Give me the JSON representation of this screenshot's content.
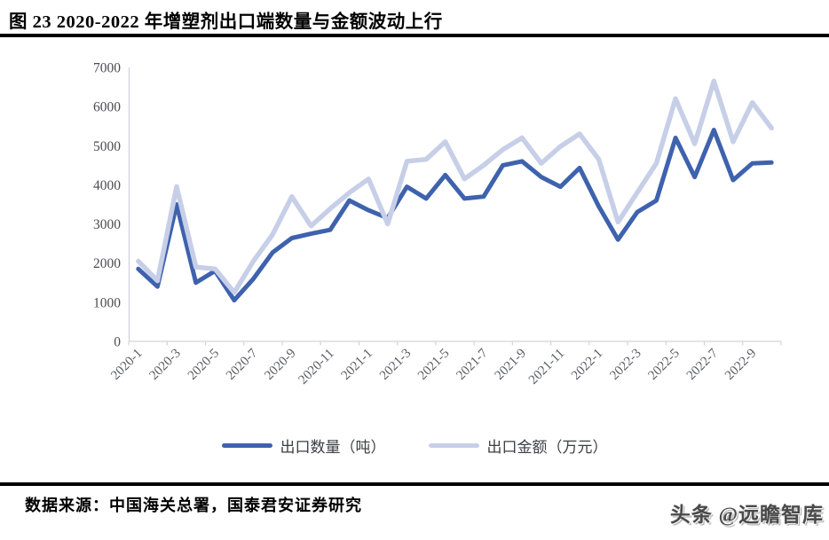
{
  "title": "图 23 2020-2022 年增塑剂出口端数量与金额波动上行",
  "footer": {
    "source": "数据来源：中国海关总署，国泰君安证券研究",
    "watermark": "头条 @远瞻智库"
  },
  "chart_data": {
    "type": "line",
    "title": "图 23 2020-2022 年增塑剂出口端数量与金额波动上行",
    "x": [
      "2020-1",
      "2020-2",
      "2020-3",
      "2020-4",
      "2020-5",
      "2020-6",
      "2020-7",
      "2020-8",
      "2020-9",
      "2020-10",
      "2020-11",
      "2020-12",
      "2021-1",
      "2021-2",
      "2021-3",
      "2021-4",
      "2021-5",
      "2021-6",
      "2021-7",
      "2021-8",
      "2021-9",
      "2021-10",
      "2021-11",
      "2021-12",
      "2022-1",
      "2022-2",
      "2022-3",
      "2022-4",
      "2022-5",
      "2022-6",
      "2022-7",
      "2022-8",
      "2022-9",
      "2022-10"
    ],
    "x_tick_labels": [
      "2020-1",
      "2020-3",
      "2020-5",
      "2020-7",
      "2020-9",
      "2020-11",
      "2021-1",
      "2021-3",
      "2021-5",
      "2021-7",
      "2021-9",
      "2021-11",
      "2022-1",
      "2022-3",
      "2022-5",
      "2022-7",
      "2022-9"
    ],
    "ylim": [
      0,
      7000
    ],
    "ytick_step": 1000,
    "grid": false,
    "legend_position": "bottom",
    "axis_color": "#d2d3d9",
    "ytick_color": "#4b4b50",
    "xtick_color": "#5b5d63",
    "series": [
      {
        "name": "出口数量（吨）",
        "color": "#3E62AD",
        "width": 5,
        "values": [
          1850,
          1400,
          3500,
          1500,
          1800,
          1050,
          1600,
          2270,
          2640,
          2750,
          2850,
          3600,
          3350,
          3150,
          3950,
          3650,
          4250,
          3650,
          3700,
          4500,
          4600,
          4200,
          3950,
          4430,
          3450,
          2600,
          3300,
          3600,
          5200,
          4200,
          5400,
          4120,
          4550,
          4570
        ]
      },
      {
        "name": "出口金额（万元）",
        "color": "#C7CFE8",
        "width": 5.5,
        "values": [
          2050,
          1550,
          3950,
          1900,
          1850,
          1250,
          2050,
          2730,
          3700,
          2950,
          3390,
          3800,
          4150,
          3000,
          4600,
          4650,
          5100,
          4150,
          4500,
          4900,
          5200,
          4550,
          4980,
          5300,
          4650,
          3050,
          3800,
          4550,
          6200,
          5050,
          6650,
          5100,
          6100,
          5450
        ]
      }
    ]
  }
}
